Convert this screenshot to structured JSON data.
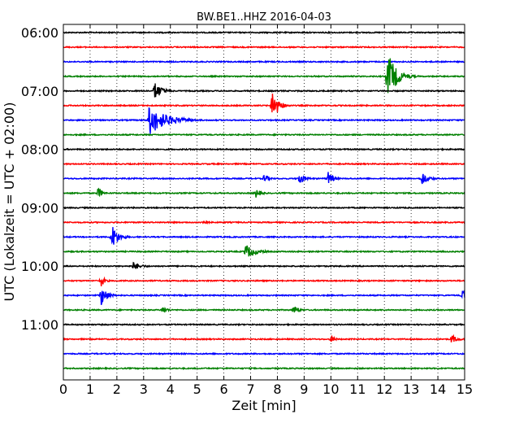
{
  "chart_data": {
    "type": "line",
    "title": "BW.BE1..HHZ 2016-04-03",
    "xlabel": "Zeit  [min]",
    "ylabel": "UTC (Lokalzeit = UTC + 02:00)",
    "xlim": [
      0,
      15
    ],
    "x_ticks": [
      "0",
      "1",
      "2",
      "3",
      "4",
      "5",
      "6",
      "7",
      "8",
      "9",
      "10",
      "11",
      "12",
      "13",
      "14",
      "15"
    ],
    "grid": true,
    "y_ticks": [
      {
        "label": "06:00",
        "trace": 0
      },
      {
        "label": "07:00",
        "trace": 4
      },
      {
        "label": "08:00",
        "trace": 8
      },
      {
        "label": "09:00",
        "trace": 12
      },
      {
        "label": "10:00",
        "trace": 16
      },
      {
        "label": "11:00",
        "trace": 20
      }
    ],
    "trace_colors": [
      "#000000",
      "#ff0000",
      "#0000ff",
      "#008000"
    ],
    "trace_count": 24,
    "trace_start_times": [
      "06:00",
      "06:15",
      "06:30",
      "06:45",
      "07:00",
      "07:15",
      "07:30",
      "07:45",
      "08:00",
      "08:15",
      "08:30",
      "08:45",
      "09:00",
      "09:15",
      "09:30",
      "09:45",
      "10:00",
      "10:15",
      "10:30",
      "10:45",
      "11:00",
      "11:15",
      "11:30",
      "11:45"
    ],
    "events": [
      {
        "trace": 3,
        "minute": 12.1,
        "amplitude": 1.9,
        "duration": 0.7
      },
      {
        "trace": 4,
        "minute": 3.4,
        "amplitude": 0.7,
        "duration": 0.6
      },
      {
        "trace": 5,
        "minute": 7.8,
        "amplitude": 1.2,
        "duration": 0.5
      },
      {
        "trace": 6,
        "minute": 3.2,
        "amplitude": 1.1,
        "duration": 1.4
      },
      {
        "trace": 10,
        "minute": 7.5,
        "amplitude": 0.35,
        "duration": 0.4
      },
      {
        "trace": 10,
        "minute": 8.8,
        "amplitude": 0.45,
        "duration": 0.5
      },
      {
        "trace": 10,
        "minute": 9.9,
        "amplitude": 0.5,
        "duration": 0.4
      },
      {
        "trace": 10,
        "minute": 13.4,
        "amplitude": 0.55,
        "duration": 0.5
      },
      {
        "trace": 11,
        "minute": 1.3,
        "amplitude": 0.5,
        "duration": 0.3
      },
      {
        "trace": 11,
        "minute": 7.2,
        "amplitude": 0.35,
        "duration": 0.4
      },
      {
        "trace": 13,
        "minute": 5.2,
        "amplitude": 0.25,
        "duration": 0.4
      },
      {
        "trace": 14,
        "minute": 1.8,
        "amplitude": 1.0,
        "duration": 0.5
      },
      {
        "trace": 15,
        "minute": 6.8,
        "amplitude": 0.55,
        "duration": 0.8
      },
      {
        "trace": 16,
        "minute": 2.6,
        "amplitude": 0.3,
        "duration": 0.7
      },
      {
        "trace": 17,
        "minute": 1.4,
        "amplitude": 0.5,
        "duration": 0.3
      },
      {
        "trace": 18,
        "minute": 1.4,
        "amplitude": 0.8,
        "duration": 0.5
      },
      {
        "trace": 18,
        "minute": 14.9,
        "amplitude": 0.6,
        "duration": 0.2
      },
      {
        "trace": 19,
        "minute": 3.7,
        "amplitude": 0.3,
        "duration": 0.4
      },
      {
        "trace": 19,
        "minute": 8.6,
        "amplitude": 0.4,
        "duration": 0.4
      },
      {
        "trace": 21,
        "minute": 10.0,
        "amplitude": 0.35,
        "duration": 0.3
      },
      {
        "trace": 21,
        "minute": 14.5,
        "amplitude": 0.35,
        "duration": 0.5
      }
    ]
  }
}
